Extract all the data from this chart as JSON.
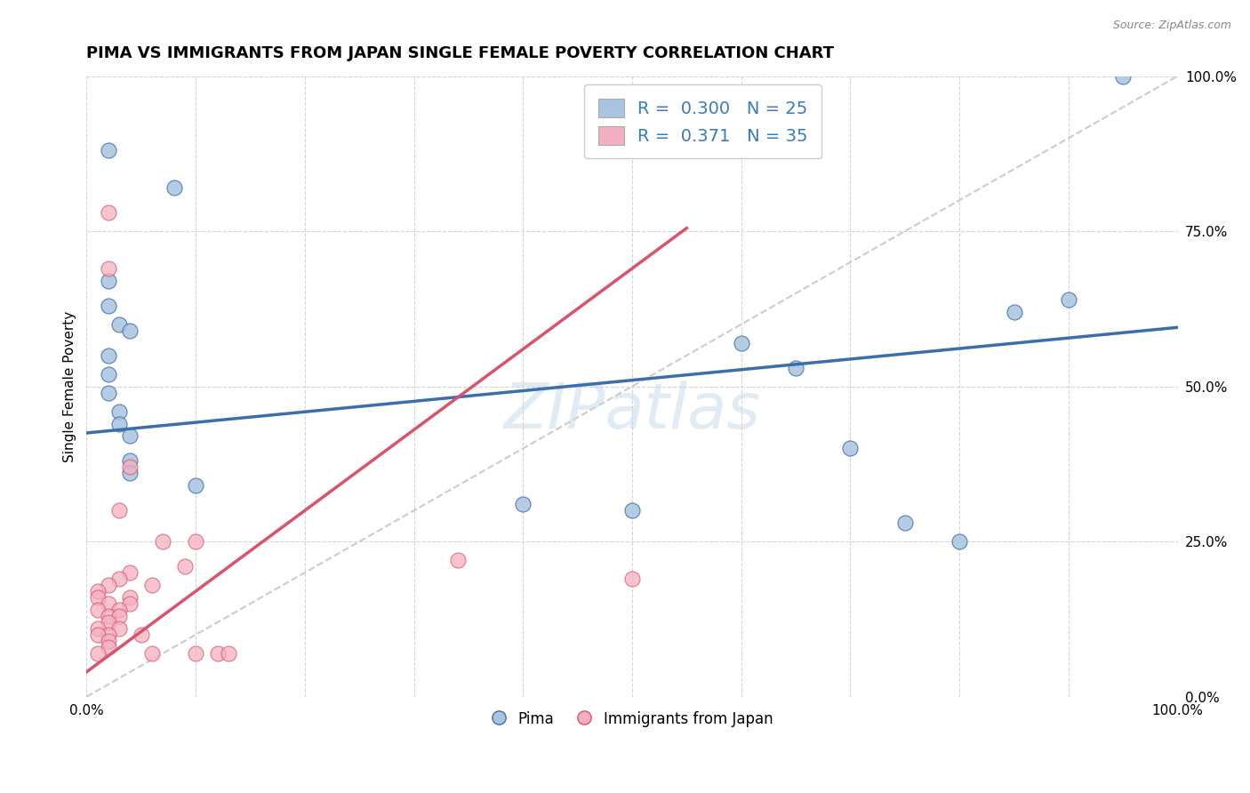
{
  "title": "PIMA VS IMMIGRANTS FROM JAPAN SINGLE FEMALE POVERTY CORRELATION CHART",
  "source": "Source: ZipAtlas.com",
  "ylabel": "Single Female Poverty",
  "watermark": "ZIPatlas",
  "blue_R": 0.3,
  "blue_N": 25,
  "pink_R": 0.371,
  "pink_N": 35,
  "blue_color": "#a8c4e0",
  "pink_color": "#f4b0c0",
  "blue_line_color": "#3a6fad",
  "pink_line_color": "#d9536a",
  "diagonal_color": "#cccccc",
  "legend_color": "#3a7abf",
  "blue_points": [
    [
      0.02,
      0.88
    ],
    [
      0.08,
      0.82
    ],
    [
      0.02,
      0.67
    ],
    [
      0.02,
      0.63
    ],
    [
      0.03,
      0.6
    ],
    [
      0.04,
      0.59
    ],
    [
      0.02,
      0.55
    ],
    [
      0.02,
      0.52
    ],
    [
      0.02,
      0.49
    ],
    [
      0.03,
      0.46
    ],
    [
      0.03,
      0.44
    ],
    [
      0.04,
      0.42
    ],
    [
      0.04,
      0.38
    ],
    [
      0.04,
      0.36
    ],
    [
      0.1,
      0.34
    ],
    [
      0.4,
      0.31
    ],
    [
      0.5,
      0.3
    ],
    [
      0.6,
      0.57
    ],
    [
      0.65,
      0.53
    ],
    [
      0.7,
      0.4
    ],
    [
      0.75,
      0.28
    ],
    [
      0.8,
      0.25
    ],
    [
      0.85,
      0.62
    ],
    [
      0.9,
      0.64
    ],
    [
      0.95,
      1.0
    ]
  ],
  "pink_points": [
    [
      0.02,
      0.78
    ],
    [
      0.02,
      0.69
    ],
    [
      0.04,
      0.37
    ],
    [
      0.03,
      0.3
    ],
    [
      0.07,
      0.25
    ],
    [
      0.09,
      0.21
    ],
    [
      0.04,
      0.2
    ],
    [
      0.03,
      0.19
    ],
    [
      0.02,
      0.18
    ],
    [
      0.06,
      0.18
    ],
    [
      0.01,
      0.17
    ],
    [
      0.04,
      0.16
    ],
    [
      0.01,
      0.16
    ],
    [
      0.02,
      0.15
    ],
    [
      0.04,
      0.15
    ],
    [
      0.03,
      0.14
    ],
    [
      0.01,
      0.14
    ],
    [
      0.02,
      0.13
    ],
    [
      0.03,
      0.13
    ],
    [
      0.02,
      0.12
    ],
    [
      0.03,
      0.11
    ],
    [
      0.01,
      0.11
    ],
    [
      0.02,
      0.1
    ],
    [
      0.01,
      0.1
    ],
    [
      0.05,
      0.1
    ],
    [
      0.02,
      0.09
    ],
    [
      0.02,
      0.08
    ],
    [
      0.01,
      0.07
    ],
    [
      0.06,
      0.07
    ],
    [
      0.1,
      0.07
    ],
    [
      0.12,
      0.07
    ],
    [
      0.13,
      0.07
    ],
    [
      0.5,
      0.19
    ],
    [
      0.34,
      0.22
    ],
    [
      0.1,
      0.25
    ]
  ],
  "blue_line": [
    0.0,
    0.425,
    1.0,
    0.595
  ],
  "pink_line": [
    0.0,
    0.04,
    0.55,
    0.755
  ],
  "xlim": [
    0.0,
    1.0
  ],
  "ylim": [
    0.0,
    1.0
  ],
  "ytick_labels": [
    "0.0%",
    "25.0%",
    "50.0%",
    "75.0%",
    "100.0%"
  ],
  "ytick_values": [
    0.0,
    0.25,
    0.5,
    0.75,
    1.0
  ],
  "xtick_labels": [
    "0.0%",
    "",
    "",
    "",
    "",
    "",
    "",
    "",
    "",
    "",
    "100.0%"
  ],
  "xtick_values": [
    0.0,
    0.1,
    0.2,
    0.3,
    0.4,
    0.5,
    0.6,
    0.7,
    0.8,
    0.9,
    1.0
  ],
  "grid_color": "#d0d0d0",
  "background_color": "#ffffff",
  "title_fontsize": 13,
  "label_fontsize": 11,
  "tick_fontsize": 11
}
